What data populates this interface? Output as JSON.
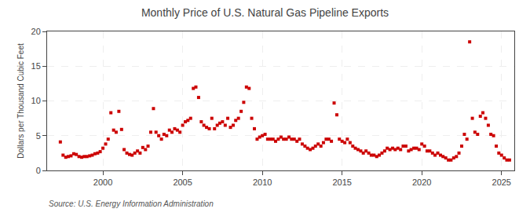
{
  "chart_data": {
    "type": "scatter",
    "title": "Monthly Price of U.S. Natural Gas Pipeline Exports",
    "ylabel": "Dollars per Thousand Cubic Feet",
    "annotations": [
      "Source: U.S. Energy Information Administration"
    ],
    "color": "#cc0000",
    "marker": "square",
    "grid": true,
    "xlim": [
      1996.5,
      2025.8
    ],
    "xticks": [
      2000,
      2005,
      2010,
      2015,
      2020,
      2025
    ],
    "ylim": [
      0,
      20
    ],
    "yticks": [
      0,
      5,
      10,
      15,
      20
    ],
    "x": [
      1997.33,
      1997.5,
      1997.67,
      1997.83,
      1998.0,
      1998.17,
      1998.33,
      1998.5,
      1998.67,
      1998.83,
      1999.0,
      1999.17,
      1999.33,
      1999.5,
      1999.67,
      1999.83,
      2000.0,
      2000.17,
      2000.33,
      2000.5,
      2000.67,
      2000.83,
      2001.0,
      2001.17,
      2001.33,
      2001.5,
      2001.67,
      2001.83,
      2002.0,
      2002.17,
      2002.33,
      2002.5,
      2002.67,
      2002.83,
      2003.0,
      2003.17,
      2003.33,
      2003.5,
      2003.67,
      2003.83,
      2004.0,
      2004.17,
      2004.33,
      2004.5,
      2004.67,
      2004.83,
      2005.0,
      2005.17,
      2005.33,
      2005.5,
      2005.67,
      2005.83,
      2006.0,
      2006.17,
      2006.33,
      2006.5,
      2006.67,
      2006.83,
      2007.0,
      2007.17,
      2007.33,
      2007.5,
      2007.67,
      2007.83,
      2008.0,
      2008.17,
      2008.33,
      2008.5,
      2008.67,
      2008.83,
      2009.0,
      2009.17,
      2009.33,
      2009.5,
      2009.67,
      2009.83,
      2010.0,
      2010.17,
      2010.33,
      2010.5,
      2010.67,
      2010.83,
      2011.0,
      2011.17,
      2011.33,
      2011.5,
      2011.67,
      2011.83,
      2012.0,
      2012.17,
      2012.33,
      2012.5,
      2012.67,
      2012.83,
      2013.0,
      2013.17,
      2013.33,
      2013.5,
      2013.67,
      2013.83,
      2014.0,
      2014.17,
      2014.33,
      2014.5,
      2014.67,
      2014.83,
      2015.0,
      2015.17,
      2015.33,
      2015.5,
      2015.67,
      2015.83,
      2016.0,
      2016.17,
      2016.33,
      2016.5,
      2016.67,
      2016.83,
      2017.0,
      2017.17,
      2017.33,
      2017.5,
      2017.67,
      2017.83,
      2018.0,
      2018.17,
      2018.33,
      2018.5,
      2018.67,
      2018.83,
      2019.0,
      2019.17,
      2019.33,
      2019.5,
      2019.67,
      2019.83,
      2020.0,
      2020.17,
      2020.33,
      2020.5,
      2020.67,
      2020.83,
      2021.0,
      2021.17,
      2021.33,
      2021.5,
      2021.67,
      2021.83,
      2022.0,
      2022.17,
      2022.33,
      2022.5,
      2022.67,
      2022.83,
      2023.0,
      2023.17,
      2023.33,
      2023.5,
      2023.67,
      2023.83,
      2024.0,
      2024.17,
      2024.33,
      2024.5,
      2024.67,
      2024.83,
      2025.0,
      2025.17,
      2025.33,
      2025.5
    ],
    "values": [
      4.1,
      2.2,
      1.9,
      2.0,
      2.1,
      2.4,
      2.3,
      2.0,
      1.9,
      2.0,
      2.0,
      2.1,
      2.2,
      2.4,
      2.5,
      2.7,
      3.2,
      3.8,
      4.5,
      8.3,
      5.8,
      5.5,
      8.5,
      5.9,
      3.0,
      2.5,
      2.3,
      2.2,
      2.5,
      2.8,
      2.5,
      3.3,
      3.0,
      3.5,
      5.5,
      8.9,
      5.5,
      5.0,
      4.5,
      5.2,
      5.0,
      5.8,
      5.5,
      6.0,
      5.8,
      5.5,
      6.5,
      7.0,
      7.2,
      7.5,
      11.8,
      12.0,
      10.5,
      7.0,
      6.5,
      6.2,
      6.0,
      7.5,
      6.0,
      6.5,
      6.8,
      7.0,
      6.5,
      7.5,
      6.2,
      6.5,
      7.2,
      7.5,
      8.5,
      9.8,
      12.0,
      11.8,
      7.5,
      6.0,
      4.5,
      4.8,
      5.0,
      5.2,
      4.5,
      4.5,
      4.5,
      4.2,
      4.5,
      4.8,
      4.5,
      4.5,
      4.8,
      4.5,
      4.5,
      4.2,
      4.5,
      3.8,
      3.5,
      3.2,
      3.0,
      3.2,
      3.5,
      3.8,
      3.5,
      4.0,
      4.5,
      4.5,
      4.2,
      9.7,
      8.0,
      4.5,
      4.2,
      4.0,
      4.5,
      4.0,
      3.5,
      3.2,
      3.0,
      2.8,
      2.5,
      2.8,
      2.5,
      2.2,
      2.2,
      2.0,
      2.2,
      2.5,
      2.8,
      3.2,
      3.0,
      3.2,
      3.0,
      3.2,
      3.0,
      3.5,
      3.5,
      2.8,
      3.0,
      3.2,
      3.2,
      3.0,
      3.8,
      3.5,
      2.8,
      2.8,
      2.5,
      2.2,
      2.5,
      2.2,
      2.0,
      1.8,
      1.5,
      1.5,
      1.8,
      2.0,
      2.5,
      3.5,
      5.2,
      4.5,
      18.5,
      7.5,
      5.5,
      5.2,
      7.8,
      8.3,
      7.5,
      6.5,
      5.2,
      5.0,
      3.5,
      2.5,
      2.2,
      1.8,
      1.5,
      1.5
    ]
  }
}
